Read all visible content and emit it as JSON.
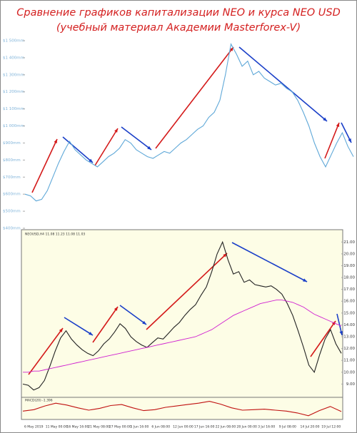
{
  "title": [
    "Сравнение графиков капитализации NEO и курса NEO USD",
    "(учебный материал Академии Masterforex-V)"
  ],
  "chart_data": [
    {
      "type": "line",
      "series": [
        {
          "color": "#5fa8d8",
          "values": [
            600,
            590,
            560,
            570,
            620,
            700,
            780,
            850,
            910,
            860,
            830,
            800,
            780,
            760,
            790,
            820,
            840,
            870,
            920,
            900,
            860,
            840,
            820,
            810,
            830,
            850,
            840,
            870,
            900,
            920,
            950,
            980,
            1000,
            1050,
            1080,
            1150,
            1300,
            1480,
            1420,
            1350,
            1380,
            1300,
            1320,
            1280,
            1260,
            1240,
            1250,
            1220,
            1200,
            1150,
            1080,
            1000,
            900,
            820,
            760,
            830,
            900,
            960,
            880,
            820
          ]
        }
      ],
      "ylim": [
        400,
        1500
      ],
      "yticks": [
        {
          "value": 1500,
          "label": "$1 500mm"
        },
        {
          "value": 1400,
          "label": "$1 400mm"
        },
        {
          "value": 1300,
          "label": "$1 300mm"
        },
        {
          "value": 1200,
          "label": "$1 200mm"
        },
        {
          "value": 1100,
          "label": "$1 100mm"
        },
        {
          "value": 1000,
          "label": "$1 000mm"
        },
        {
          "value": 900,
          "label": "$900mm"
        },
        {
          "value": 800,
          "label": "$800mm"
        },
        {
          "value": 700,
          "label": "$700mm"
        },
        {
          "value": 600,
          "label": "$600mm"
        },
        {
          "value": 500,
          "label": "$500mm"
        },
        {
          "value": 400,
          "label": "$400mm"
        }
      ]
    },
    {
      "type": "line",
      "subtitle": "NEOUSD,H4 11.08 11.23 11.08 11.03",
      "series": [
        {
          "color": "#222222",
          "values": [
            9.0,
            8.9,
            8.5,
            8.7,
            9.3,
            10.5,
            11.8,
            12.9,
            13.5,
            12.8,
            12.3,
            11.9,
            11.6,
            11.4,
            11.8,
            12.4,
            12.8,
            13.4,
            14.1,
            13.7,
            13.0,
            12.6,
            12.3,
            12.1,
            12.5,
            12.9,
            12.8,
            13.3,
            13.8,
            14.2,
            14.8,
            15.3,
            15.7,
            16.5,
            17.2,
            18.5,
            20.0,
            21.0,
            19.5,
            18.3,
            18.5,
            17.6,
            17.8,
            17.4,
            17.3,
            17.2,
            17.3,
            17.0,
            16.6,
            15.8,
            14.8,
            13.5,
            12.1,
            10.6,
            10.0,
            11.5,
            12.8,
            13.6,
            12.4,
            11.6
          ]
        },
        {
          "color": "#d020d0",
          "values": [
            10.0,
            10.0,
            10.1,
            10.1,
            10.2,
            10.3,
            10.4,
            10.5,
            10.6,
            10.7,
            10.8,
            10.9,
            11.0,
            11.1,
            11.2,
            11.3,
            11.4,
            11.5,
            11.6,
            11.7,
            11.8,
            11.9,
            12.0,
            12.1,
            12.2,
            12.3,
            12.4,
            12.5,
            12.6,
            12.7,
            12.8,
            12.9,
            13.0,
            13.2,
            13.4,
            13.6,
            13.9,
            14.2,
            14.5,
            14.8,
            15.0,
            15.2,
            15.4,
            15.6,
            15.8,
            15.9,
            16.0,
            16.1,
            16.1,
            16.0,
            15.9,
            15.7,
            15.5,
            15.2,
            14.9,
            14.7,
            14.5,
            14.3,
            14.1,
            13.9
          ]
        }
      ],
      "ylim": [
        8,
        21.8
      ],
      "yticks": [
        {
          "value": 9,
          "label": "9.00"
        },
        {
          "value": 10,
          "label": "10.00"
        },
        {
          "value": 11,
          "label": "11.00"
        },
        {
          "value": 12,
          "label": "12.00"
        },
        {
          "value": 13,
          "label": "13.00"
        },
        {
          "value": 14,
          "label": "14.00"
        },
        {
          "value": 15,
          "label": "15.00"
        },
        {
          "value": 16,
          "label": "16.00"
        },
        {
          "value": 17,
          "label": "17.00"
        },
        {
          "value": 18,
          "label": "18.00"
        },
        {
          "value": 19,
          "label": "19.00"
        },
        {
          "value": 20,
          "label": "20.00"
        },
        {
          "value": 21,
          "label": "21.00"
        }
      ],
      "x_labels": [
        "6 May 2019",
        "11 May 00:00",
        "16 May 16:00",
        "21 May 08:00",
        "27 May 00:00",
        "1 Jun 16:00",
        "6 Jun 08:00",
        "12 Jun 00:00",
        "17 Jun 16:00",
        "22 Jun 08:00",
        "28 Jun 00:00",
        "3 Jul 16:00",
        "9 Jul 08:00",
        "14 Jul 20:00",
        "19 Jul 12:00"
      ]
    },
    {
      "type": "line",
      "subtitle": "MACD(20) -1.396",
      "series": [
        {
          "color": "#c01010",
          "values": [
            -0.5,
            -0.2,
            0.6,
            1.2,
            0.8,
            0.2,
            -0.3,
            0.1,
            0.7,
            0.9,
            0.2,
            -0.4,
            -0.2,
            0.3,
            0.6,
            0.9,
            1.2,
            1.6,
            1.0,
            0.2,
            -0.3,
            -0.2,
            -0.1,
            -0.3,
            -0.5,
            -0.9,
            -1.5,
            -0.4,
            0.5,
            -0.6
          ]
        }
      ],
      "ylim": [
        -2,
        2
      ]
    }
  ]
}
